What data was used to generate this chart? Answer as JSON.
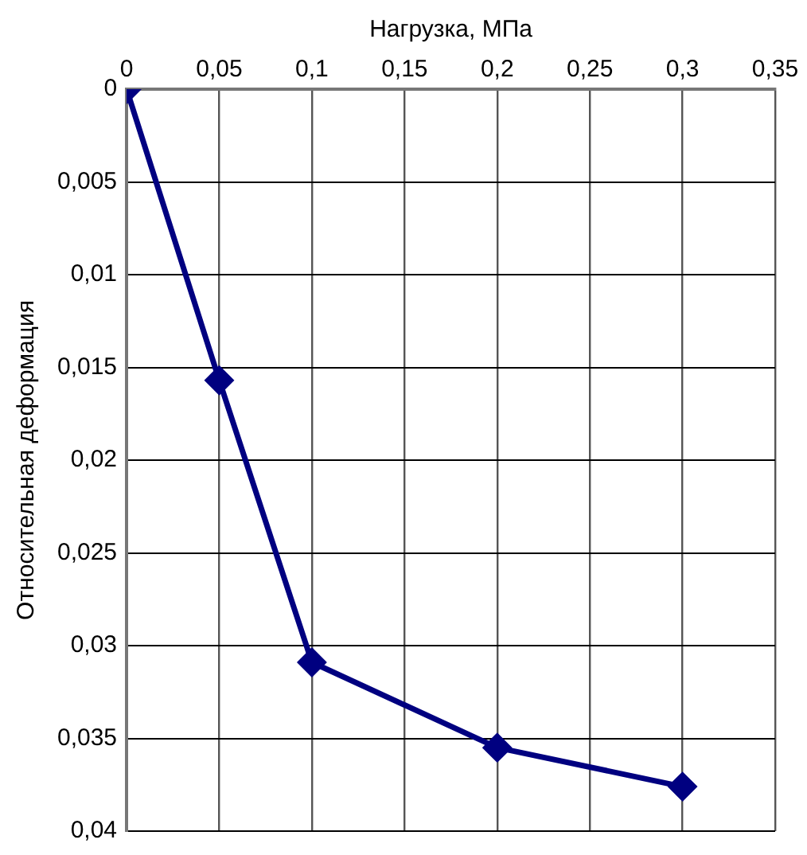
{
  "chart_data": {
    "type": "line",
    "xlabel": "Нагрузка, МПа",
    "ylabel": "Относительная деформация",
    "x": [
      0,
      0.05,
      0.1,
      0.2,
      0.3
    ],
    "series": [
      {
        "color": "#000080",
        "values": [
          0,
          0.0157,
          0.0309,
          0.0355,
          0.0376
        ]
      }
    ],
    "xlim": [
      0,
      0.35
    ],
    "xticks": [
      0,
      {
        "value": 0.05,
        "label": "0,05"
      },
      {
        "value": 0.1,
        "label": "0,1"
      },
      {
        "value": 0.15,
        "label": "0,15"
      },
      {
        "value": 0.2,
        "label": "0,2"
      },
      {
        "value": 0.25,
        "label": "0,25"
      },
      {
        "value": 0.3,
        "label": "0,3"
      },
      {
        "value": 0.35,
        "label": "0,35"
      }
    ],
    "ylim": [
      0.04,
      0
    ],
    "yticks": [
      0,
      {
        "value": 0.005,
        "label": "0,005"
      },
      {
        "value": 0.01,
        "label": "0,01"
      },
      {
        "value": 0.015,
        "label": "0,015"
      },
      {
        "value": 0.02,
        "label": "0,02"
      },
      {
        "value": 0.025,
        "label": "0,025"
      },
      {
        "value": 0.03,
        "label": "0,03"
      },
      {
        "value": 0.035,
        "label": "0,035"
      },
      {
        "value": 0.04,
        "label": "0,04"
      }
    ],
    "grid": true,
    "legend": false,
    "marker": "diamond",
    "line_style": "solid"
  }
}
